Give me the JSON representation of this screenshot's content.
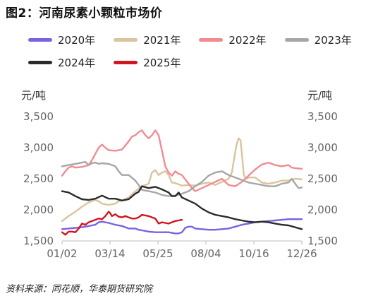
{
  "title": "图2：河南尿素小颗粒市场价",
  "source": "资料来源：同花顺，华泰期货研究院",
  "unit_left": "元/吨",
  "unit_right": "元/吨",
  "chart_data": {
    "type": "line",
    "title": "图2：河南尿素小颗粒市场价",
    "xlabel": "",
    "ylabel": "元/吨",
    "x_ticks": [
      "01/02",
      "03/14",
      "05/25",
      "08/04",
      "10/16",
      "12/26"
    ],
    "y_ticks": [
      "1,500",
      "2,000",
      "2,500",
      "3,000",
      "3,500"
    ],
    "ylim": [
      1500,
      3500
    ],
    "grid": false,
    "legend_position": "top",
    "series": [
      {
        "name": "2020年",
        "color": "#7b61e0",
        "points": [
          [
            0,
            1690
          ],
          [
            10,
            1700
          ],
          [
            20,
            1710
          ],
          [
            30,
            1720
          ],
          [
            40,
            1740
          ],
          [
            50,
            1760
          ],
          [
            55,
            1800
          ],
          [
            60,
            1810
          ],
          [
            70,
            1790
          ],
          [
            80,
            1760
          ],
          [
            90,
            1740
          ],
          [
            95,
            1720
          ],
          [
            100,
            1700
          ],
          [
            110,
            1700
          ],
          [
            115,
            1680
          ],
          [
            120,
            1670
          ],
          [
            130,
            1650
          ],
          [
            140,
            1640
          ],
          [
            150,
            1640
          ],
          [
            160,
            1640
          ],
          [
            170,
            1620
          ],
          [
            175,
            1620
          ],
          [
            180,
            1640
          ],
          [
            185,
            1710
          ],
          [
            190,
            1730
          ],
          [
            195,
            1730
          ],
          [
            200,
            1700
          ],
          [
            210,
            1690
          ],
          [
            220,
            1680
          ],
          [
            230,
            1680
          ],
          [
            240,
            1690
          ],
          [
            250,
            1700
          ],
          [
            260,
            1730
          ],
          [
            270,
            1760
          ],
          [
            280,
            1780
          ],
          [
            290,
            1800
          ],
          [
            300,
            1810
          ],
          [
            310,
            1820
          ],
          [
            320,
            1830
          ],
          [
            330,
            1840
          ],
          [
            340,
            1850
          ],
          [
            350,
            1850
          ],
          [
            360,
            1850
          ]
        ]
      },
      {
        "name": "2021年",
        "color": "#d9c49e",
        "points": [
          [
            0,
            1820
          ],
          [
            5,
            1860
          ],
          [
            10,
            1900
          ],
          [
            20,
            1970
          ],
          [
            30,
            2050
          ],
          [
            40,
            2120
          ],
          [
            50,
            2160
          ],
          [
            55,
            2140
          ],
          [
            60,
            2100
          ],
          [
            70,
            2080
          ],
          [
            80,
            2100
          ],
          [
            85,
            2140
          ],
          [
            90,
            2150
          ],
          [
            100,
            2200
          ],
          [
            110,
            2300
          ],
          [
            120,
            2380
          ],
          [
            130,
            2420
          ],
          [
            135,
            2600
          ],
          [
            140,
            2640
          ],
          [
            145,
            2560
          ],
          [
            150,
            2600
          ],
          [
            155,
            2620
          ],
          [
            160,
            2560
          ],
          [
            165,
            2440
          ],
          [
            170,
            2430
          ],
          [
            180,
            2390
          ],
          [
            190,
            2400
          ],
          [
            200,
            2390
          ],
          [
            210,
            2420
          ],
          [
            220,
            2440
          ],
          [
            230,
            2400
          ],
          [
            240,
            2450
          ],
          [
            250,
            2500
          ],
          [
            255,
            2600
          ],
          [
            258,
            2800
          ],
          [
            262,
            3050
          ],
          [
            265,
            3150
          ],
          [
            268,
            3120
          ],
          [
            270,
            2900
          ],
          [
            273,
            2560
          ],
          [
            276,
            2500
          ],
          [
            280,
            2520
          ],
          [
            290,
            2520
          ],
          [
            300,
            2440
          ],
          [
            310,
            2420
          ],
          [
            320,
            2440
          ],
          [
            330,
            2470
          ],
          [
            340,
            2470
          ],
          [
            350,
            2500
          ],
          [
            360,
            2490
          ]
        ]
      },
      {
        "name": "2022年",
        "color": "#f28b91",
        "points": [
          [
            0,
            2550
          ],
          [
            5,
            2620
          ],
          [
            10,
            2680
          ],
          [
            15,
            2700
          ],
          [
            20,
            2680
          ],
          [
            30,
            2690
          ],
          [
            40,
            2720
          ],
          [
            45,
            2800
          ],
          [
            50,
            2900
          ],
          [
            55,
            3000
          ],
          [
            60,
            3050
          ],
          [
            65,
            3000
          ],
          [
            70,
            2960
          ],
          [
            80,
            2950
          ],
          [
            90,
            2970
          ],
          [
            100,
            3100
          ],
          [
            105,
            3180
          ],
          [
            110,
            3200
          ],
          [
            115,
            3250
          ],
          [
            120,
            3280
          ],
          [
            125,
            3200
          ],
          [
            130,
            3150
          ],
          [
            135,
            3200
          ],
          [
            140,
            3280
          ],
          [
            145,
            3200
          ],
          [
            150,
            2950
          ],
          [
            155,
            2700
          ],
          [
            160,
            2600
          ],
          [
            165,
            2550
          ],
          [
            170,
            2620
          ],
          [
            175,
            2580
          ],
          [
            180,
            2560
          ],
          [
            190,
            2420
          ],
          [
            195,
            2350
          ],
          [
            200,
            2300
          ],
          [
            210,
            2350
          ],
          [
            220,
            2400
          ],
          [
            230,
            2450
          ],
          [
            240,
            2500
          ],
          [
            250,
            2400
          ],
          [
            260,
            2380
          ],
          [
            270,
            2450
          ],
          [
            280,
            2550
          ],
          [
            290,
            2650
          ],
          [
            300,
            2730
          ],
          [
            310,
            2760
          ],
          [
            320,
            2720
          ],
          [
            330,
            2700
          ],
          [
            340,
            2720
          ],
          [
            345,
            2680
          ],
          [
            350,
            2670
          ],
          [
            360,
            2660
          ]
        ]
      },
      {
        "name": "2023年",
        "color": "#a6a6a6",
        "points": [
          [
            0,
            2700
          ],
          [
            10,
            2720
          ],
          [
            20,
            2740
          ],
          [
            30,
            2760
          ],
          [
            35,
            2770
          ],
          [
            40,
            2720
          ],
          [
            45,
            2750
          ],
          [
            50,
            2760
          ],
          [
            55,
            2740
          ],
          [
            60,
            2750
          ],
          [
            70,
            2740
          ],
          [
            80,
            2700
          ],
          [
            85,
            2620
          ],
          [
            90,
            2560
          ],
          [
            100,
            2560
          ],
          [
            110,
            2470
          ],
          [
            115,
            2400
          ],
          [
            120,
            2320
          ],
          [
            130,
            2300
          ],
          [
            140,
            2280
          ],
          [
            150,
            2240
          ],
          [
            160,
            2220
          ],
          [
            170,
            2230
          ],
          [
            180,
            2260
          ],
          [
            190,
            2300
          ],
          [
            200,
            2380
          ],
          [
            210,
            2450
          ],
          [
            220,
            2550
          ],
          [
            230,
            2600
          ],
          [
            240,
            2620
          ],
          [
            250,
            2560
          ],
          [
            260,
            2520
          ],
          [
            270,
            2480
          ],
          [
            280,
            2440
          ],
          [
            290,
            2420
          ],
          [
            300,
            2400
          ],
          [
            310,
            2380
          ],
          [
            320,
            2380
          ],
          [
            330,
            2420
          ],
          [
            340,
            2440
          ],
          [
            345,
            2500
          ],
          [
            350,
            2420
          ],
          [
            355,
            2350
          ],
          [
            360,
            2360
          ]
        ]
      },
      {
        "name": "2024年",
        "color": "#2b2b2b",
        "points": [
          [
            0,
            2300
          ],
          [
            10,
            2280
          ],
          [
            20,
            2220
          ],
          [
            30,
            2170
          ],
          [
            40,
            2160
          ],
          [
            50,
            2180
          ],
          [
            60,
            2230
          ],
          [
            70,
            2180
          ],
          [
            80,
            2180
          ],
          [
            90,
            2150
          ],
          [
            100,
            2170
          ],
          [
            110,
            2260
          ],
          [
            115,
            2290
          ],
          [
            120,
            2380
          ],
          [
            130,
            2350
          ],
          [
            140,
            2370
          ],
          [
            150,
            2330
          ],
          [
            160,
            2280
          ],
          [
            165,
            2220
          ],
          [
            170,
            2220
          ],
          [
            175,
            2280
          ],
          [
            180,
            2200
          ],
          [
            190,
            2150
          ],
          [
            200,
            2100
          ],
          [
            210,
            2020
          ],
          [
            220,
            1960
          ],
          [
            230,
            1920
          ],
          [
            240,
            1900
          ],
          [
            250,
            1880
          ],
          [
            260,
            1850
          ],
          [
            270,
            1830
          ],
          [
            280,
            1810
          ],
          [
            290,
            1800
          ],
          [
            300,
            1810
          ],
          [
            310,
            1800
          ],
          [
            320,
            1780
          ],
          [
            330,
            1760
          ],
          [
            340,
            1750
          ],
          [
            350,
            1720
          ],
          [
            360,
            1690
          ]
        ]
      },
      {
        "name": "2025年",
        "color": "#d0161e",
        "points": [
          [
            0,
            1640
          ],
          [
            5,
            1600
          ],
          [
            10,
            1650
          ],
          [
            15,
            1650
          ],
          [
            20,
            1640
          ],
          [
            25,
            1700
          ],
          [
            30,
            1780
          ],
          [
            35,
            1760
          ],
          [
            40,
            1800
          ],
          [
            45,
            1820
          ],
          [
            50,
            1840
          ],
          [
            55,
            1860
          ],
          [
            60,
            1850
          ],
          [
            65,
            1900
          ],
          [
            70,
            1970
          ],
          [
            72,
            1950
          ],
          [
            75,
            1900
          ],
          [
            80,
            1930
          ],
          [
            85,
            1890
          ],
          [
            90,
            1880
          ],
          [
            95,
            1900
          ],
          [
            100,
            1880
          ],
          [
            105,
            1860
          ],
          [
            110,
            1860
          ],
          [
            115,
            1880
          ],
          [
            120,
            1920
          ],
          [
            125,
            1910
          ],
          [
            130,
            1900
          ],
          [
            135,
            1880
          ],
          [
            140,
            1860
          ],
          [
            145,
            1780
          ],
          [
            150,
            1800
          ],
          [
            155,
            1790
          ],
          [
            160,
            1780
          ],
          [
            165,
            1800
          ],
          [
            170,
            1820
          ],
          [
            175,
            1830
          ],
          [
            180,
            1840
          ]
        ]
      }
    ]
  }
}
